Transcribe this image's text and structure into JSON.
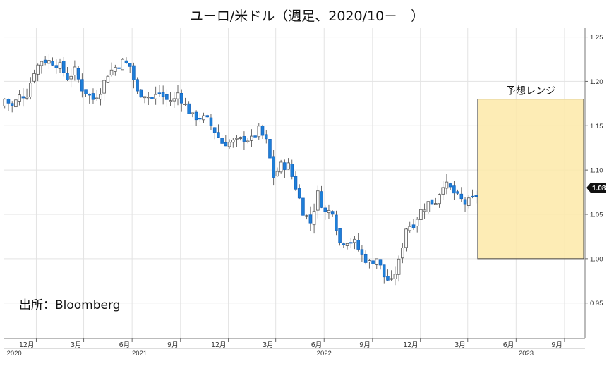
{
  "chart_data": {
    "type": "candlestick",
    "title": "ユーロ/米ドル（週足、2020/10－　）",
    "source_note": "出所：Bloomberg",
    "ylim": [
      0.91,
      1.26
    ],
    "y_ticks": [
      "0.95",
      "1.00",
      "1.05",
      "1.10",
      "1.15",
      "1.20",
      "1.25"
    ],
    "current_price": "1.08",
    "forecast_range": {
      "label": "予想レンジ",
      "low": 1.0,
      "high": 1.18,
      "start": "2023-03-20",
      "end": "2023-12-31"
    },
    "x_range": [
      "2020-10-01",
      "2023-10-10"
    ],
    "month_ticks": [
      {
        "date": "2020-12-01",
        "label": "12月"
      },
      {
        "date": "2021-03-01",
        "label": "3月"
      },
      {
        "date": "2021-06-01",
        "label": "6月"
      },
      {
        "date": "2021-09-01",
        "label": "9月"
      },
      {
        "date": "2021-12-01",
        "label": "12月"
      },
      {
        "date": "2022-03-01",
        "label": "3月"
      },
      {
        "date": "2022-06-01",
        "label": "6月"
      },
      {
        "date": "2022-09-01",
        "label": "9月"
      },
      {
        "date": "2022-12-01",
        "label": "12月"
      },
      {
        "date": "2023-03-01",
        "label": "3月"
      },
      {
        "date": "2023-06-01",
        "label": "6月"
      },
      {
        "date": "2023-09-01",
        "label": "9月"
      }
    ],
    "year_labels": [
      {
        "date": "2020-10-20",
        "label": "2020"
      },
      {
        "date": "2021-06-15",
        "label": "2021"
      },
      {
        "date": "2022-06-01",
        "label": "2022"
      },
      {
        "date": "2023-06-20",
        "label": "2023"
      }
    ],
    "close_path": [
      [
        "2020-10-02",
        1.172
      ],
      [
        "2020-10-09",
        1.18
      ],
      [
        "2020-10-23",
        1.172
      ],
      [
        "2020-11-06",
        1.183
      ],
      [
        "2020-11-20",
        1.186
      ],
      [
        "2020-12-04",
        1.212
      ],
      [
        "2020-12-18",
        1.224
      ],
      [
        "2021-01-08",
        1.222
      ],
      [
        "2021-01-22",
        1.217
      ],
      [
        "2021-02-05",
        1.204
      ],
      [
        "2021-02-19",
        1.212
      ],
      [
        "2021-03-05",
        1.192
      ],
      [
        "2021-03-26",
        1.18
      ],
      [
        "2021-04-09",
        1.19
      ],
      [
        "2021-04-23",
        1.209
      ],
      [
        "2021-05-07",
        1.216
      ],
      [
        "2021-05-21",
        1.222
      ],
      [
        "2021-06-04",
        1.217
      ],
      [
        "2021-06-18",
        1.187
      ],
      [
        "2021-07-02",
        1.186
      ],
      [
        "2021-07-16",
        1.18
      ],
      [
        "2021-07-30",
        1.187
      ],
      [
        "2021-08-13",
        1.179
      ],
      [
        "2021-08-27",
        1.179
      ],
      [
        "2021-09-03",
        1.187
      ],
      [
        "2021-09-17",
        1.173
      ],
      [
        "2021-10-01",
        1.16
      ],
      [
        "2021-10-15",
        1.16
      ],
      [
        "2021-10-29",
        1.156
      ],
      [
        "2021-11-12",
        1.144
      ],
      [
        "2021-11-26",
        1.131
      ],
      [
        "2021-12-10",
        1.131
      ],
      [
        "2021-12-24",
        1.132
      ],
      [
        "2022-01-07",
        1.136
      ],
      [
        "2022-01-21",
        1.134
      ],
      [
        "2022-02-04",
        1.145
      ],
      [
        "2022-02-18",
        1.132
      ],
      [
        "2022-03-04",
        1.093
      ],
      [
        "2022-03-18",
        1.105
      ],
      [
        "2022-04-01",
        1.105
      ],
      [
        "2022-04-15",
        1.081
      ],
      [
        "2022-04-29",
        1.054
      ],
      [
        "2022-05-13",
        1.041
      ],
      [
        "2022-05-27",
        1.073
      ],
      [
        "2022-06-10",
        1.052
      ],
      [
        "2022-06-24",
        1.055
      ],
      [
        "2022-07-08",
        1.018
      ],
      [
        "2022-07-22",
        1.021
      ],
      [
        "2022-08-05",
        1.018
      ],
      [
        "2022-08-19",
        1.004
      ],
      [
        "2022-09-02",
        0.995
      ],
      [
        "2022-09-16",
        1.001
      ],
      [
        "2022-09-30",
        0.98
      ],
      [
        "2022-10-14",
        0.973
      ],
      [
        "2022-10-28",
        0.996
      ],
      [
        "2022-11-11",
        1.035
      ],
      [
        "2022-11-25",
        1.04
      ],
      [
        "2022-12-09",
        1.054
      ],
      [
        "2022-12-23",
        1.063
      ],
      [
        "2023-01-06",
        1.065
      ],
      [
        "2023-01-20",
        1.085
      ],
      [
        "2023-02-03",
        1.079
      ],
      [
        "2023-02-17",
        1.069
      ],
      [
        "2023-03-03",
        1.063
      ],
      [
        "2023-03-10",
        1.064
      ],
      [
        "2023-03-17",
        1.067
      ],
      [
        "2023-03-20",
        1.072
      ]
    ]
  }
}
